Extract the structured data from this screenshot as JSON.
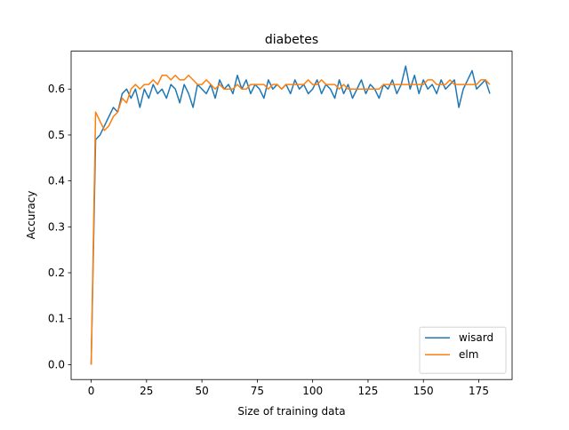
{
  "chart_data": {
    "type": "line",
    "title": "diabetes",
    "xlabel": "Size of training data",
    "ylabel": "Accuracy",
    "x": [
      0,
      2,
      4,
      6,
      8,
      10,
      12,
      14,
      16,
      18,
      20,
      22,
      24,
      26,
      28,
      30,
      32,
      34,
      36,
      38,
      40,
      42,
      44,
      46,
      48,
      50,
      52,
      54,
      56,
      58,
      60,
      62,
      64,
      66,
      68,
      70,
      72,
      74,
      76,
      78,
      80,
      82,
      84,
      86,
      88,
      90,
      92,
      94,
      96,
      98,
      100,
      102,
      104,
      106,
      108,
      110,
      112,
      114,
      116,
      118,
      120,
      122,
      124,
      126,
      128,
      130,
      132,
      134,
      136,
      138,
      140,
      142,
      144,
      146,
      148,
      150,
      152,
      154,
      156,
      158,
      160,
      162,
      164,
      166,
      168,
      170,
      172,
      174,
      176,
      178,
      180
    ],
    "series": [
      {
        "name": "wisard",
        "color": "#1f77b4",
        "values": [
          0.0,
          0.49,
          0.5,
          0.52,
          0.54,
          0.56,
          0.55,
          0.59,
          0.6,
          0.58,
          0.6,
          0.56,
          0.6,
          0.58,
          0.61,
          0.59,
          0.6,
          0.58,
          0.61,
          0.6,
          0.57,
          0.61,
          0.59,
          0.56,
          0.61,
          0.6,
          0.59,
          0.61,
          0.58,
          0.62,
          0.6,
          0.61,
          0.59,
          0.63,
          0.6,
          0.62,
          0.59,
          0.61,
          0.6,
          0.58,
          0.62,
          0.6,
          0.61,
          0.6,
          0.61,
          0.59,
          0.62,
          0.6,
          0.61,
          0.59,
          0.6,
          0.62,
          0.59,
          0.61,
          0.6,
          0.58,
          0.62,
          0.59,
          0.61,
          0.58,
          0.6,
          0.62,
          0.59,
          0.61,
          0.6,
          0.58,
          0.61,
          0.6,
          0.62,
          0.59,
          0.61,
          0.65,
          0.6,
          0.63,
          0.59,
          0.62,
          0.6,
          0.61,
          0.59,
          0.62,
          0.6,
          0.61,
          0.62,
          0.56,
          0.6,
          0.62,
          0.64,
          0.6,
          0.61,
          0.62,
          0.59
        ]
      },
      {
        "name": "elm",
        "color": "#ff7f0e",
        "values": [
          0.0,
          0.55,
          0.53,
          0.51,
          0.52,
          0.54,
          0.55,
          0.58,
          0.57,
          0.6,
          0.61,
          0.6,
          0.61,
          0.61,
          0.62,
          0.61,
          0.63,
          0.63,
          0.62,
          0.63,
          0.62,
          0.62,
          0.63,
          0.62,
          0.61,
          0.61,
          0.62,
          0.61,
          0.6,
          0.61,
          0.6,
          0.6,
          0.6,
          0.61,
          0.6,
          0.6,
          0.61,
          0.61,
          0.61,
          0.61,
          0.6,
          0.61,
          0.61,
          0.6,
          0.61,
          0.61,
          0.61,
          0.61,
          0.61,
          0.62,
          0.61,
          0.61,
          0.62,
          0.61,
          0.61,
          0.61,
          0.6,
          0.61,
          0.6,
          0.6,
          0.6,
          0.6,
          0.6,
          0.6,
          0.6,
          0.6,
          0.61,
          0.61,
          0.61,
          0.61,
          0.61,
          0.61,
          0.61,
          0.61,
          0.61,
          0.61,
          0.62,
          0.62,
          0.61,
          0.61,
          0.61,
          0.62,
          0.61,
          0.61,
          0.61,
          0.61,
          0.61,
          0.61,
          0.62,
          0.62,
          0.61
        ]
      }
    ],
    "xlim": [
      -9.05,
      190.05
    ],
    "ylim": [
      -0.0325,
      0.6825
    ],
    "xticks": [
      0,
      25,
      50,
      75,
      100,
      125,
      150,
      175
    ],
    "yticks": [
      {
        "value": 0,
        "label": "0.0"
      },
      0.1,
      0.2,
      0.3,
      0.4,
      0.5,
      0.6
    ],
    "legend": "lower right"
  }
}
